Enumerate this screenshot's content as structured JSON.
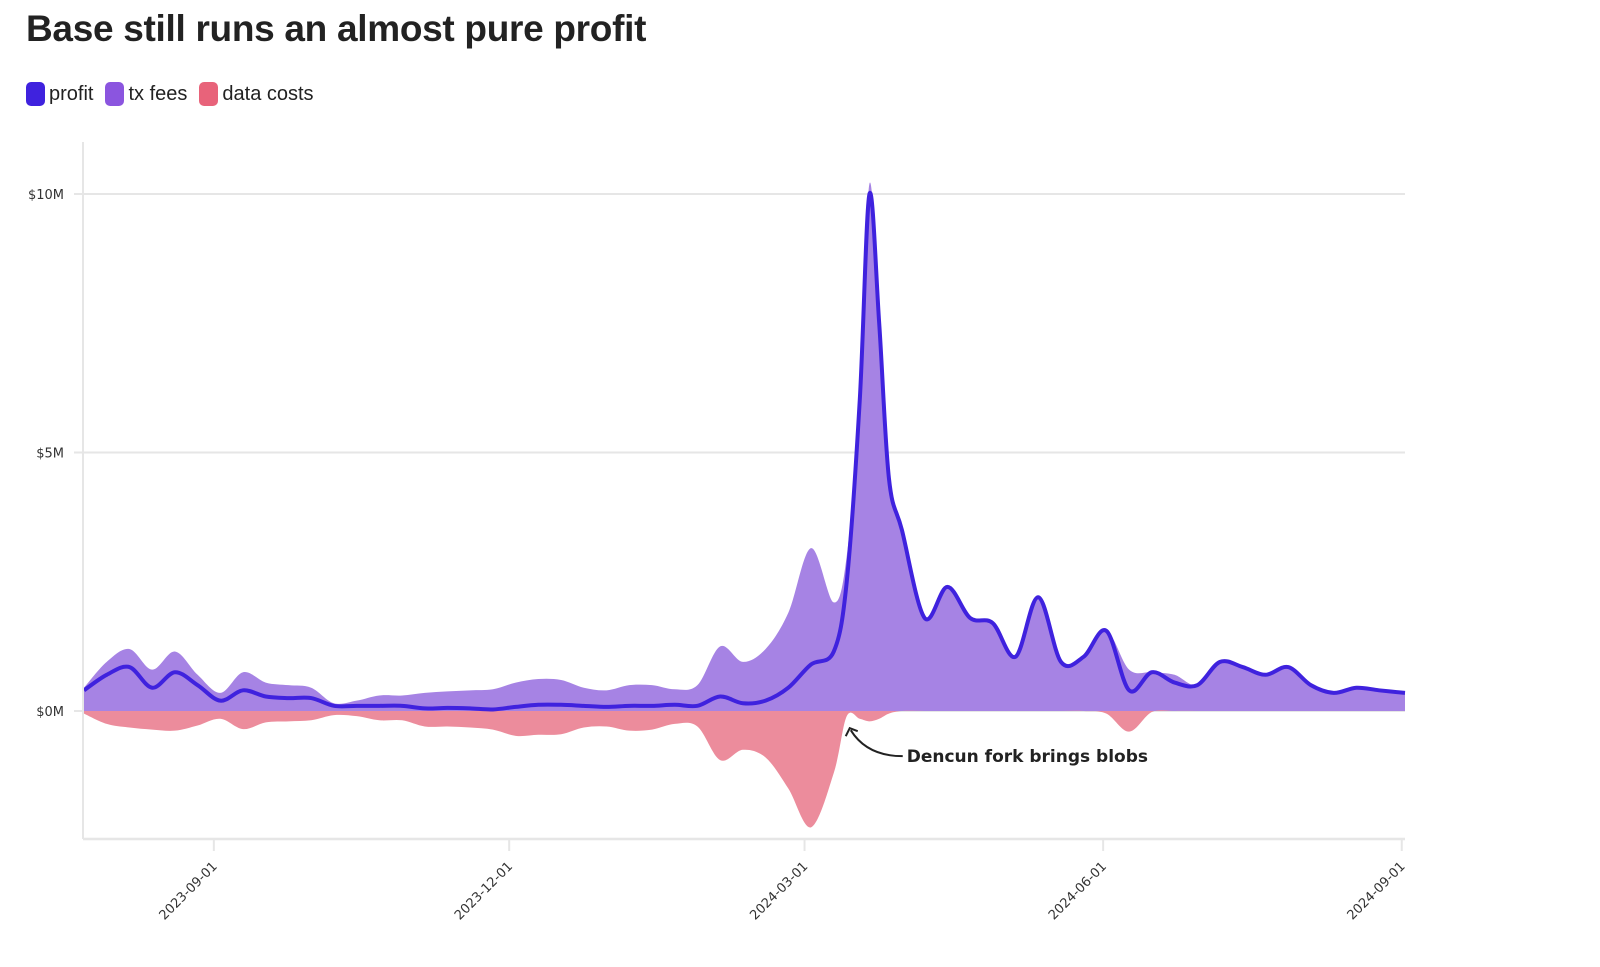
{
  "chart_data": {
    "type": "area",
    "title": "Base still runs an almost pure profit",
    "xlabel": "",
    "ylabel": "",
    "ylim": [
      -2.5,
      10.5
    ],
    "x_range": [
      "2023-07-23",
      "2024-09-02"
    ],
    "grid": "horizontal",
    "legend_position": "top-left",
    "y_ticks": [
      {
        "value": 0,
        "label": "$0M"
      },
      {
        "value": 5,
        "label": "$5M"
      },
      {
        "value": 10,
        "label": "$10M"
      }
    ],
    "x_ticks": [
      "2023-09-01",
      "2023-12-01",
      "2024-03-01",
      "2024-06-01",
      "2024-09-01"
    ],
    "legend": [
      {
        "key": "profit",
        "label": "profit",
        "color": "#3f22de"
      },
      {
        "key": "tx_fees",
        "label": "tx fees",
        "color": "#8b55df"
      },
      {
        "key": "data_costs",
        "label": "data costs",
        "color": "#e8637a"
      }
    ],
    "annotation": {
      "text": "Dencun fork brings blobs",
      "date": "2024-03-14",
      "value": -0.1
    },
    "x": [
      "2023-07-23",
      "2023-07-30",
      "2023-08-06",
      "2023-08-13",
      "2023-08-20",
      "2023-08-27",
      "2023-09-03",
      "2023-09-10",
      "2023-09-17",
      "2023-09-24",
      "2023-10-01",
      "2023-10-08",
      "2023-10-15",
      "2023-10-22",
      "2023-10-29",
      "2023-11-05",
      "2023-11-12",
      "2023-11-19",
      "2023-11-26",
      "2023-12-03",
      "2023-12-10",
      "2023-12-17",
      "2023-12-24",
      "2023-12-31",
      "2024-01-07",
      "2024-01-14",
      "2024-01-21",
      "2024-01-28",
      "2024-02-04",
      "2024-02-11",
      "2024-02-18",
      "2024-02-25",
      "2024-03-03",
      "2024-03-10",
      "2024-03-14",
      "2024-03-18",
      "2024-03-21",
      "2024-03-24",
      "2024-03-27",
      "2024-03-31",
      "2024-04-07",
      "2024-04-14",
      "2024-04-21",
      "2024-04-28",
      "2024-05-05",
      "2024-05-12",
      "2024-05-19",
      "2024-05-26",
      "2024-06-02",
      "2024-06-09",
      "2024-06-16",
      "2024-06-23",
      "2024-06-30",
      "2024-07-07",
      "2024-07-14",
      "2024-07-21",
      "2024-07-28",
      "2024-08-04",
      "2024-08-11",
      "2024-08-18",
      "2024-08-25",
      "2024-09-02"
    ],
    "series": [
      {
        "name": "tx fees",
        "values": [
          0.45,
          0.95,
          1.2,
          0.8,
          1.15,
          0.7,
          0.35,
          0.75,
          0.55,
          0.5,
          0.45,
          0.15,
          0.2,
          0.3,
          0.3,
          0.35,
          0.38,
          0.4,
          0.42,
          0.55,
          0.62,
          0.6,
          0.45,
          0.4,
          0.5,
          0.5,
          0.42,
          0.5,
          1.25,
          0.95,
          1.2,
          1.9,
          3.15,
          2.1,
          3.0,
          6.0,
          10.2,
          7.5,
          4.5,
          3.5,
          1.8,
          2.4,
          1.8,
          1.7,
          1.05,
          2.2,
          0.95,
          1.05,
          1.55,
          0.8,
          0.75,
          0.7,
          0.5,
          0.95,
          0.85,
          0.7,
          0.85,
          0.5,
          0.35,
          0.45,
          0.4,
          0.35
        ]
      },
      {
        "name": "profit",
        "values": [
          0.4,
          0.7,
          0.85,
          0.45,
          0.75,
          0.5,
          0.2,
          0.4,
          0.28,
          0.25,
          0.25,
          0.1,
          0.1,
          0.1,
          0.1,
          0.05,
          0.06,
          0.05,
          0.03,
          0.08,
          0.12,
          0.12,
          0.1,
          0.08,
          0.1,
          0.1,
          0.12,
          0.1,
          0.28,
          0.15,
          0.2,
          0.45,
          0.9,
          1.15,
          2.5,
          6.0,
          10.0,
          7.5,
          4.5,
          3.5,
          1.8,
          2.4,
          1.8,
          1.7,
          1.05,
          2.2,
          0.95,
          1.05,
          1.55,
          0.4,
          0.75,
          0.55,
          0.5,
          0.95,
          0.85,
          0.7,
          0.85,
          0.5,
          0.35,
          0.45,
          0.4,
          0.35
        ]
      },
      {
        "name": "data costs",
        "values": [
          -0.05,
          -0.25,
          -0.32,
          -0.36,
          -0.38,
          -0.28,
          -0.15,
          -0.35,
          -0.22,
          -0.2,
          -0.18,
          -0.08,
          -0.1,
          -0.18,
          -0.18,
          -0.3,
          -0.3,
          -0.32,
          -0.36,
          -0.48,
          -0.46,
          -0.45,
          -0.32,
          -0.3,
          -0.38,
          -0.36,
          -0.25,
          -0.3,
          -0.95,
          -0.75,
          -0.9,
          -1.5,
          -2.25,
          -1.2,
          -0.1,
          -0.15,
          -0.2,
          -0.15,
          -0.05,
          0,
          0,
          0,
          0,
          0,
          0,
          0,
          0,
          0,
          -0.05,
          -0.4,
          -0.02,
          0,
          0,
          0,
          0,
          0,
          0,
          0,
          0,
          0,
          0,
          0
        ]
      }
    ]
  }
}
